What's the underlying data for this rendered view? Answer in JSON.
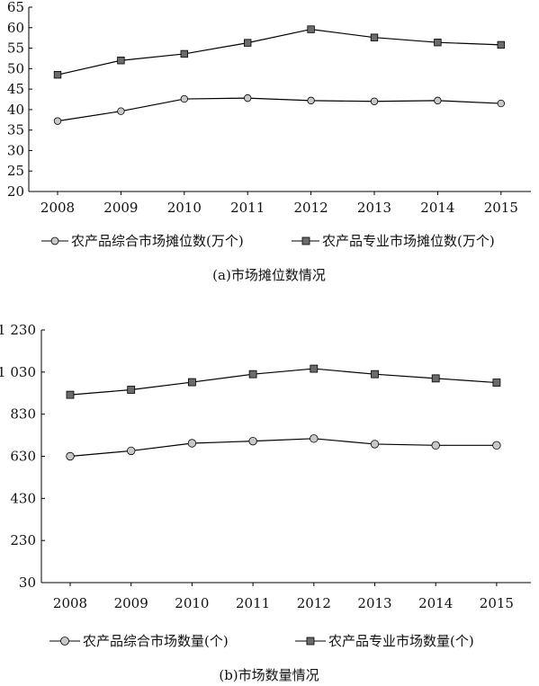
{
  "chart_data": [
    {
      "type": "line",
      "caption": "(a)市场摊位数情况",
      "x": [
        "2008",
        "2009",
        "2010",
        "2011",
        "2012",
        "2013",
        "2014",
        "2015"
      ],
      "ylim": [
        20,
        65
      ],
      "yticks": [
        "20",
        "25",
        "30",
        "35",
        "40",
        "45",
        "50",
        "55",
        "60",
        "65"
      ],
      "ytick_values": [
        20,
        25,
        30,
        35,
        40,
        45,
        50,
        55,
        60,
        65
      ],
      "grid": false,
      "legend_position": "bottom",
      "series": [
        {
          "name": "农产品综合市场摊位数(万个)",
          "marker": "circle",
          "color": "#c8c8c8",
          "values": [
            37.2,
            39.6,
            42.6,
            42.8,
            42.2,
            42.0,
            42.2,
            41.5
          ]
        },
        {
          "name": "农产品专业市场摊位数(万个)",
          "marker": "square",
          "color": "#6b6b6b",
          "values": [
            48.5,
            52.0,
            53.6,
            56.3,
            59.6,
            57.6,
            56.4,
            55.8
          ]
        }
      ]
    },
    {
      "type": "line",
      "caption": "(b)市场数量情况",
      "x": [
        "2008",
        "2009",
        "2010",
        "2011",
        "2012",
        "2013",
        "2014",
        "2015"
      ],
      "ylim": [
        30,
        1230
      ],
      "yticks": [
        "30",
        "230",
        "430",
        "630",
        "830",
        "1 030",
        "1 230"
      ],
      "ytick_values": [
        30,
        230,
        430,
        630,
        830,
        1030,
        1230
      ],
      "grid": false,
      "legend_position": "bottom",
      "series": [
        {
          "name": "农产品综合市场数量(个)",
          "marker": "circle",
          "color": "#c8c8c8",
          "values": [
            630,
            656,
            692,
            702,
            714,
            688,
            682,
            682
          ]
        },
        {
          "name": "农产品专业市场数量(个)",
          "marker": "square",
          "color": "#6b6b6b",
          "values": [
            922,
            946,
            982,
            1020,
            1046,
            1020,
            1000,
            980
          ]
        }
      ]
    }
  ]
}
